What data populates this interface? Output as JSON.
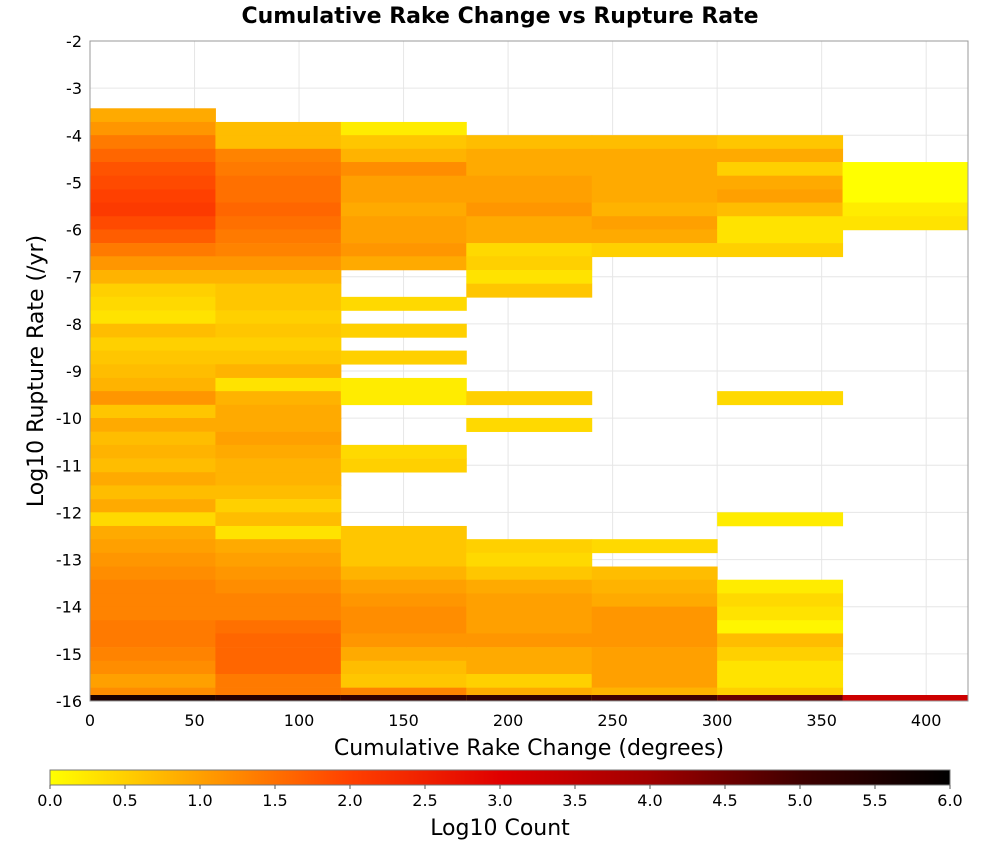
{
  "chart_data": {
    "type": "heatmap",
    "title": "Cumulative Rake Change vs Rupture Rate",
    "xlabel": "Cumulative Rake Change (degrees)",
    "ylabel": "Log10 Rupture Rate (/yr)",
    "xlim": [
      0,
      420
    ],
    "ylim": [
      -16,
      -2
    ],
    "x_ticks": [
      "0",
      "50",
      "100",
      "150",
      "200",
      "250",
      "300",
      "350",
      "400"
    ],
    "y_ticks": [
      "-2",
      "-3",
      "-4",
      "-5",
      "-6",
      "-7",
      "-8",
      "-9",
      "-10",
      "-11",
      "-12",
      "-13",
      "-14",
      "-15",
      "-16"
    ],
    "grid": true,
    "x_bin_width": 60,
    "y_bin_height": 0.2857,
    "colorbar": {
      "label": "Log10 Count",
      "range": [
        0.0,
        6.0
      ],
      "ticks": [
        "0.0",
        "0.5",
        "1.0",
        "1.5",
        "2.0",
        "2.5",
        "3.0",
        "3.5",
        "4.0",
        "4.5",
        "5.0",
        "5.5",
        "6.0"
      ],
      "colors": [
        "#ffff00",
        "#ffa000",
        "#ff4000",
        "#e00000",
        "#a00000",
        "#400000",
        "#000000"
      ]
    },
    "columns": [
      {
        "x": [
          0,
          60
        ],
        "cells": [
          [
            -3.57,
            0.9
          ],
          [
            -3.86,
            1.1
          ],
          [
            -4.14,
            1.4
          ],
          [
            -4.43,
            1.6
          ],
          [
            -4.71,
            1.8
          ],
          [
            -5.0,
            1.9
          ],
          [
            -5.29,
            2.0
          ],
          [
            -5.57,
            2.1
          ],
          [
            -5.86,
            1.9
          ],
          [
            -6.14,
            1.7
          ],
          [
            -6.43,
            1.4
          ],
          [
            -6.71,
            1.1
          ],
          [
            -7.0,
            0.8
          ],
          [
            -7.29,
            0.5
          ],
          [
            -7.57,
            0.4
          ],
          [
            -7.86,
            0.3
          ],
          [
            -8.14,
            0.7
          ],
          [
            -8.43,
            0.5
          ],
          [
            -8.71,
            0.6
          ],
          [
            -9.0,
            0.7
          ],
          [
            -9.29,
            0.8
          ],
          [
            -9.57,
            1.1
          ],
          [
            -9.86,
            0.6
          ],
          [
            -10.14,
            0.9
          ],
          [
            -10.43,
            0.7
          ],
          [
            -10.71,
            0.8
          ],
          [
            -11.0,
            0.7
          ],
          [
            -11.29,
            0.9
          ],
          [
            -11.57,
            0.7
          ],
          [
            -11.86,
            0.9
          ],
          [
            -12.14,
            0.4
          ],
          [
            -12.43,
            0.9
          ],
          [
            -12.71,
            1.0
          ],
          [
            -13.0,
            1.1
          ],
          [
            -13.29,
            1.2
          ],
          [
            -13.57,
            1.3
          ],
          [
            -13.86,
            1.3
          ],
          [
            -14.14,
            1.3
          ],
          [
            -14.43,
            1.4
          ],
          [
            -14.71,
            1.4
          ],
          [
            -15.0,
            1.3
          ],
          [
            -15.29,
            1.2
          ],
          [
            -15.57,
            1.0
          ],
          [
            -15.86,
            1.2
          ],
          [
            -16.0,
            5.6
          ]
        ]
      },
      {
        "x": [
          60,
          120
        ],
        "cells": [
          [
            -3.86,
            0.7
          ],
          [
            -4.14,
            0.7
          ],
          [
            -4.43,
            1.3
          ],
          [
            -4.71,
            1.4
          ],
          [
            -5.0,
            1.5
          ],
          [
            -5.29,
            1.5
          ],
          [
            -5.57,
            1.6
          ],
          [
            -5.86,
            1.5
          ],
          [
            -6.14,
            1.4
          ],
          [
            -6.43,
            1.3
          ],
          [
            -6.71,
            1.1
          ],
          [
            -7.0,
            0.8
          ],
          [
            -7.29,
            0.6
          ],
          [
            -7.57,
            0.6
          ],
          [
            -7.86,
            0.5
          ],
          [
            -8.14,
            0.6
          ],
          [
            -8.43,
            0.5
          ],
          [
            -8.71,
            0.6
          ],
          [
            -9.0,
            0.8
          ],
          [
            -9.29,
            0.3
          ],
          [
            -9.57,
            0.8
          ],
          [
            -9.86,
            0.9
          ],
          [
            -10.14,
            0.9
          ],
          [
            -10.43,
            1.0
          ],
          [
            -10.71,
            0.9
          ],
          [
            -11.0,
            0.8
          ],
          [
            -11.29,
            0.8
          ],
          [
            -11.57,
            0.7
          ],
          [
            -11.86,
            0.5
          ],
          [
            -12.14,
            0.7
          ],
          [
            -12.43,
            0.3
          ],
          [
            -12.71,
            0.9
          ],
          [
            -13.0,
            1.0
          ],
          [
            -13.29,
            1.1
          ],
          [
            -13.57,
            1.2
          ],
          [
            -13.86,
            1.3
          ],
          [
            -14.14,
            1.3
          ],
          [
            -14.43,
            1.5
          ],
          [
            -14.71,
            1.6
          ],
          [
            -15.0,
            1.6
          ],
          [
            -15.29,
            1.6
          ],
          [
            -15.57,
            1.4
          ],
          [
            -15.86,
            1.4
          ],
          [
            -16.0,
            5.4
          ]
        ]
      },
      {
        "x": [
          120,
          180
        ],
        "cells": [
          [
            -3.86,
            0.2
          ],
          [
            -4.14,
            0.6
          ],
          [
            -4.43,
            0.8
          ],
          [
            -4.71,
            1.2
          ],
          [
            -5.0,
            1.0
          ],
          [
            -5.29,
            1.0
          ],
          [
            -5.57,
            0.9
          ],
          [
            -5.86,
            1.0
          ],
          [
            -6.14,
            1.0
          ],
          [
            -6.43,
            1.1
          ],
          [
            -6.71,
            0.9
          ],
          [
            -7.57,
            0.4
          ],
          [
            -8.14,
            0.5
          ],
          [
            -8.71,
            0.5
          ],
          [
            -9.29,
            0.2
          ],
          [
            -9.57,
            0.2
          ],
          [
            -10.71,
            0.4
          ],
          [
            -11.0,
            0.5
          ],
          [
            -12.43,
            0.6
          ],
          [
            -12.71,
            0.6
          ],
          [
            -13.0,
            0.6
          ],
          [
            -13.29,
            0.8
          ],
          [
            -13.57,
            1.0
          ],
          [
            -13.86,
            1.1
          ],
          [
            -14.14,
            1.2
          ],
          [
            -14.43,
            1.2
          ],
          [
            -14.71,
            1.1
          ],
          [
            -15.0,
            0.9
          ],
          [
            -15.29,
            0.7
          ],
          [
            -15.57,
            0.6
          ],
          [
            -15.86,
            1.3
          ],
          [
            -16.0,
            5.2
          ]
        ]
      },
      {
        "x": [
          180,
          240
        ],
        "cells": [
          [
            -4.14,
            0.7
          ],
          [
            -4.43,
            0.9
          ],
          [
            -4.71,
            0.9
          ],
          [
            -5.0,
            1.0
          ],
          [
            -5.29,
            1.0
          ],
          [
            -5.57,
            1.1
          ],
          [
            -5.86,
            0.9
          ],
          [
            -6.14,
            0.9
          ],
          [
            -6.43,
            0.4
          ],
          [
            -6.71,
            0.5
          ],
          [
            -7.0,
            0.3
          ],
          [
            -7.29,
            0.6
          ],
          [
            -9.57,
            0.5
          ],
          [
            -10.14,
            0.4
          ],
          [
            -12.71,
            0.5
          ],
          [
            -13.0,
            0.4
          ],
          [
            -13.29,
            0.6
          ],
          [
            -13.57,
            0.9
          ],
          [
            -13.86,
            1.0
          ],
          [
            -14.14,
            1.0
          ],
          [
            -14.43,
            1.0
          ],
          [
            -14.71,
            1.1
          ],
          [
            -15.0,
            0.9
          ],
          [
            -15.29,
            0.9
          ],
          [
            -15.57,
            0.5
          ],
          [
            -15.86,
            0.9
          ],
          [
            -16.0,
            5.2
          ]
        ]
      },
      {
        "x": [
          240,
          300
        ],
        "cells": [
          [
            -4.14,
            0.7
          ],
          [
            -4.43,
            0.9
          ],
          [
            -4.71,
            0.9
          ],
          [
            -5.0,
            0.9
          ],
          [
            -5.29,
            0.9
          ],
          [
            -5.57,
            0.8
          ],
          [
            -5.86,
            1.0
          ],
          [
            -6.14,
            0.9
          ],
          [
            -6.43,
            0.5
          ],
          [
            -12.71,
            0.4
          ],
          [
            -13.29,
            0.7
          ],
          [
            -13.57,
            0.8
          ],
          [
            -13.86,
            0.9
          ],
          [
            -14.14,
            1.1
          ],
          [
            -14.43,
            1.1
          ],
          [
            -14.71,
            1.1
          ],
          [
            -15.0,
            1.0
          ],
          [
            -15.29,
            1.0
          ],
          [
            -15.57,
            1.0
          ],
          [
            -15.86,
            0.8
          ],
          [
            -16.0,
            5.0
          ]
        ]
      },
      {
        "x": [
          300,
          360
        ],
        "cells": [
          [
            -4.14,
            0.6
          ],
          [
            -4.43,
            0.9
          ],
          [
            -4.71,
            0.5
          ],
          [
            -5.0,
            0.9
          ],
          [
            -5.29,
            1.0
          ],
          [
            -5.57,
            0.7
          ],
          [
            -5.86,
            0.3
          ],
          [
            -6.14,
            0.3
          ],
          [
            -6.43,
            0.5
          ],
          [
            -9.57,
            0.4
          ],
          [
            -12.14,
            0.2
          ],
          [
            -13.57,
            0.2
          ],
          [
            -13.86,
            0.4
          ],
          [
            -14.14,
            0.3
          ],
          [
            -14.43,
            0.1
          ],
          [
            -14.71,
            0.7
          ],
          [
            -15.0,
            0.5
          ],
          [
            -15.29,
            0.3
          ],
          [
            -15.57,
            0.3
          ],
          [
            -15.86,
            0.5
          ],
          [
            -16.0,
            4.6
          ]
        ]
      },
      {
        "x": [
          360,
          420
        ],
        "cells": [
          [
            -4.71,
            0.0
          ],
          [
            -5.0,
            0.0
          ],
          [
            -5.29,
            0.0
          ],
          [
            -5.57,
            0.2
          ],
          [
            -5.86,
            0.3
          ],
          [
            -16.0,
            3.3
          ]
        ]
      }
    ]
  }
}
